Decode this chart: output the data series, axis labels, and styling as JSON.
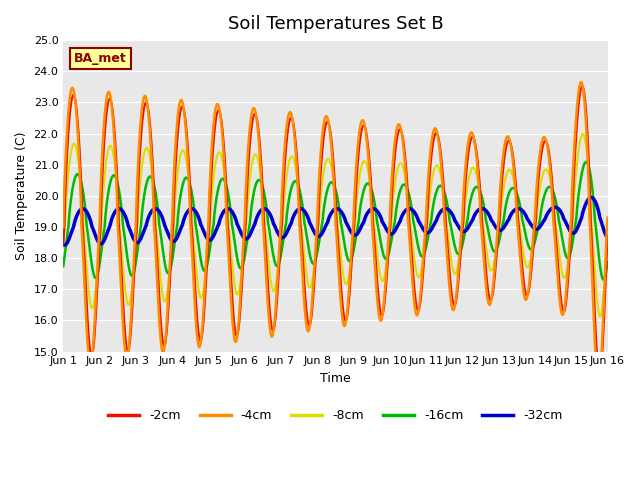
{
  "title": "Soil Temperatures Set B",
  "xlabel": "Time",
  "ylabel": "Soil Temperature (C)",
  "ylim": [
    15.0,
    25.0
  ],
  "yticks": [
    15.0,
    16.0,
    17.0,
    18.0,
    19.0,
    20.0,
    21.0,
    22.0,
    23.0,
    24.0,
    25.0
  ],
  "xtick_labels": [
    "Jun 1",
    "Jun 2",
    "Jun 3",
    "Jun 4",
    "Jun 5",
    "Jun 6",
    "Jun 7",
    "Jun 8",
    "Jun 9",
    "Jun 10",
    "Jun 11",
    "Jun 12",
    "Jun 13",
    "Jun 14",
    "Jun 15",
    "Jun 16"
  ],
  "annotation_text": "BA_met",
  "annotation_color": "#8B0000",
  "annotation_bg": "#FFFF99",
  "bg_color": "#E8E8E8",
  "colors": {
    "-2cm": "#EE1100",
    "-4cm": "#FF8C00",
    "-8cm": "#DDDD00",
    "-16cm": "#00BB00",
    "-32cm": "#0000CC"
  },
  "linewidths": {
    "-2cm": 1.5,
    "-4cm": 1.8,
    "-8cm": 1.5,
    "-16cm": 1.8,
    "-32cm": 2.5
  },
  "legend_entries": [
    "-2cm",
    "-4cm",
    "-8cm",
    "-16cm",
    "-32cm"
  ]
}
